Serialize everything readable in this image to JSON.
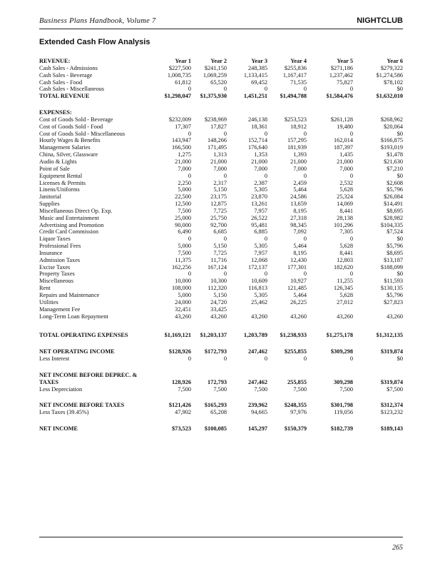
{
  "header": {
    "book": "Business Plans Handbook, Volume 7",
    "section": "NIGHTCLUB"
  },
  "title": "Extended Cash Flow Analysis",
  "table": {
    "columns": [
      "Year 1",
      "Year 2",
      "Year 3",
      "Year 4",
      "Year 5",
      "Year 6"
    ],
    "sections": [
      {
        "heading": "REVENUE:",
        "rows": [
          {
            "label": "Cash Sales - Admissions",
            "values": [
              "$227,500",
              "$241,150",
              "248,385",
              "$255,836",
              "$271,186",
              "$279,322"
            ]
          },
          {
            "label": "Cash Sales - Beverage",
            "values": [
              "1,008,735",
              "1,069,259",
              "1,133,415",
              "1,167,417",
              "1,237,462",
              "$1,274,586"
            ]
          },
          {
            "label": "Cash Sales - Food",
            "values": [
              "61,812",
              "65,520",
              "69,452",
              "71,535",
              "75,827",
              "$78,102"
            ]
          },
          {
            "label": "Cash Sales - Miscellaneous",
            "values": [
              "0",
              "0",
              "0",
              "0",
              "0",
              "$0"
            ]
          },
          {
            "label": "TOTAL REVENUE",
            "bold": true,
            "values": [
              "$1,298,047",
              "$1,375,930",
              "1,451,251",
              "$1,494,788",
              "$1,584,476",
              "$1,632,010"
            ]
          }
        ]
      },
      {
        "heading": "EXPENSES:",
        "rows": [
          {
            "label": "Cost of Goods Sold - Beverage",
            "values": [
              "$232,009",
              "$238,969",
              "246,138",
              "$253,523",
              "$261,128",
              "$268,962"
            ]
          },
          {
            "label": "Cost of Goods Sold - Food",
            "values": [
              "17,307",
              "17,827",
              "18,361",
              "18,912",
              "19,480",
              "$20,064"
            ]
          },
          {
            "label": "Cost of Goods Sold - Miscellaneous",
            "values": [
              "0",
              "0",
              "0",
              "0",
              "0",
              "$0"
            ]
          },
          {
            "label": "Hourly Wages & Benefits",
            "values": [
              "143,947",
              "148,266",
              "152,714",
              "157,295",
              "162,014",
              "$166,875"
            ]
          },
          {
            "label": "Management Salaries",
            "values": [
              "166,500",
              "171,495",
              "176,640",
              "181,939",
              "187,397",
              "$193,019"
            ]
          },
          {
            "label": "China, Silver, Glassware",
            "values": [
              "1,275",
              "1,313",
              "1,353",
              "1,393",
              "1,435",
              "$1,478"
            ]
          },
          {
            "label": "Audio & Lights",
            "values": [
              "21,000",
              "21,000",
              "21,000",
              "21,000",
              "21,000",
              "$21,630"
            ]
          },
          {
            "label": "Point of Sale",
            "values": [
              "7,000",
              "7,000",
              "7,000",
              "7,000",
              "7,000",
              "$7,210"
            ]
          },
          {
            "label": "Equipment Rental",
            "values": [
              "0",
              "0",
              "0",
              "0",
              "0",
              "$0"
            ]
          },
          {
            "label": "Licenses & Permits",
            "values": [
              "2,250",
              "2,317",
              "2,387",
              "2,459",
              "2,532",
              "$2,608"
            ]
          },
          {
            "label": "Linens/Uniforms",
            "values": [
              "5,000",
              "5,150",
              "5,305",
              "5,464",
              "5,628",
              "$5,796"
            ]
          },
          {
            "label": "Janitorial",
            "values": [
              "22,500",
              "23,175",
              "23,870",
              "24,586",
              "25,324",
              "$26,084"
            ]
          },
          {
            "label": "Supplies",
            "values": [
              "12,500",
              "12,875",
              "13,261",
              "13,659",
              "14,069",
              "$14,491"
            ]
          },
          {
            "label": "Miscellaneous Direct Op. Exp.",
            "values": [
              "7,500",
              "7,725",
              "7,957",
              "8,195",
              "8,441",
              "$8,695"
            ]
          },
          {
            "label": "Music and Entertainment",
            "values": [
              "25,000",
              "25,750",
              "26,522",
              "27,318",
              "28,138",
              "$28,982"
            ]
          },
          {
            "label": "Advertising and Promotion",
            "values": [
              "90,000",
              "92,700",
              "95,481",
              "98,345",
              "101,296",
              "$104,335"
            ]
          },
          {
            "label": "Credit Card Commission",
            "values": [
              "6,490",
              "6,685",
              "6,885",
              "7,092",
              "7,305",
              "$7,524"
            ]
          },
          {
            "label": "Liquor Taxes",
            "values": [
              "0",
              "0",
              "0",
              "0",
              "0",
              "$0"
            ]
          },
          {
            "label": "Professional Fees",
            "values": [
              "5,000",
              "5,150",
              "5,305",
              "5,464",
              "5,628",
              "$5,796"
            ]
          },
          {
            "label": "Insurance",
            "values": [
              "7,500",
              "7,725",
              "7,957",
              "8,195",
              "8,441",
              "$8,695"
            ]
          },
          {
            "label": "Admission Taxes",
            "values": [
              "11,375",
              "11,716",
              "12,068",
              "12,430",
              "12,803",
              "$13,187"
            ]
          },
          {
            "label": "Excise Taxes",
            "values": [
              "162,256",
              "167,124",
              "172,137",
              "177,301",
              "182,620",
              "$188,099"
            ]
          },
          {
            "label": "Property Taxes",
            "values": [
              "0",
              "0",
              "0",
              "0",
              "0",
              "$0"
            ]
          },
          {
            "label": "Miscellaneous",
            "values": [
              "10,000",
              "10,300",
              "10,609",
              "10,927",
              "11,255",
              "$11,593"
            ]
          },
          {
            "label": "Rent",
            "values": [
              "108,000",
              "112,320",
              "116,813",
              "121,485",
              "126,345",
              "$130,135"
            ]
          },
          {
            "label": "Repairs and Maintenance",
            "values": [
              "5,000",
              "5,150",
              "5,305",
              "5,464",
              "5,628",
              "$5,796"
            ]
          },
          {
            "label": "Utilities",
            "values": [
              "24,000",
              "24,720",
              "25,462",
              "26,225",
              "27,012",
              "$27,823"
            ]
          },
          {
            "label": "Management Fee",
            "values": [
              "32,451",
              "33,425",
              null,
              null,
              null,
              null
            ]
          },
          {
            "label": "Long-Term Loan Repayment",
            "values": [
              "43,260",
              "43,260",
              "43,260",
              "43,260",
              "43,260",
              "43,260"
            ]
          }
        ]
      },
      {
        "rows": [
          {
            "label": "TOTAL OPERATING EXPENSES",
            "bold": true,
            "values": [
              "$1,169,121",
              "$1,203,137",
              "1,203,789",
              "$1,238,933",
              "$1,275,178",
              "$1,312,135"
            ]
          }
        ]
      },
      {
        "rows": [
          {
            "label": "NET OPERATING INCOME",
            "bold": true,
            "values": [
              "$128,926",
              "$172,793",
              "247,462",
              "$255,855",
              "$309,298",
              "$319,874"
            ]
          },
          {
            "label": "Less Interest",
            "values": [
              "0",
              "0",
              "0",
              "0",
              "0",
              "$0"
            ]
          }
        ]
      },
      {
        "rows": [
          {
            "label": "NET INCOME BEFORE DEPREC. & TAXES",
            "bold": true,
            "values": [
              "128,926",
              "172,793",
              "247,462",
              "255,855",
              "309,298",
              "$319,874"
            ]
          },
          {
            "label": "Less Depreciation",
            "values": [
              "7,500",
              "7,500",
              "7,500",
              "7,500",
              "7,500",
              "$7,500"
            ]
          }
        ]
      },
      {
        "rows": [
          {
            "label": "NET INCOME BEFORE TAXES",
            "bold": true,
            "values": [
              "$121,426",
              "$165,293",
              "239,962",
              "$248,355",
              "$301,798",
              "$312,374"
            ]
          },
          {
            "label": "Less Taxes (39.45%)",
            "values": [
              "47,902",
              "65,208",
              "94,665",
              "97,976",
              "119,056",
              "$123,232"
            ]
          }
        ]
      },
      {
        "rows": [
          {
            "label": "NET INCOME",
            "bold": true,
            "values": [
              "$73,523",
              "$100,085",
              "145,297",
              "$150,379",
              "$182,739",
              "$189,143"
            ]
          }
        ]
      }
    ]
  },
  "page_number": "265"
}
